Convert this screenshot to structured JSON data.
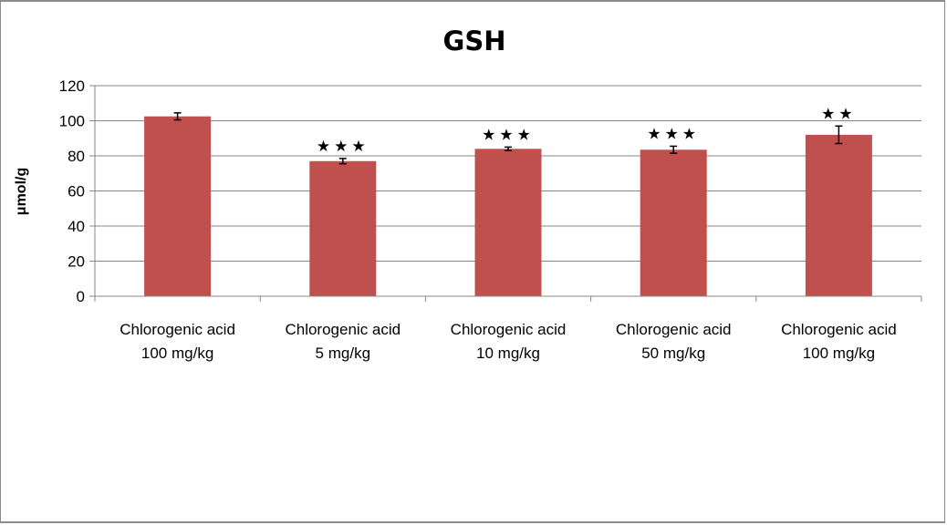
{
  "chart_data": {
    "type": "bar",
    "title": "GSH",
    "xlabel": "",
    "ylabel": "μmol/g",
    "ylim": [
      0,
      120
    ],
    "yticks": [
      0,
      20,
      40,
      60,
      80,
      100,
      120
    ],
    "grid": true,
    "categories": [
      [
        "Chlorogenic acid",
        "100 mg/kg"
      ],
      [
        "Chlorogenic acid",
        "5 mg/kg"
      ],
      [
        "Chlorogenic acid",
        "10 mg/kg"
      ],
      [
        "Chlorogenic acid",
        "50 mg/kg"
      ],
      [
        "Chlorogenic acid",
        "100 mg/kg"
      ]
    ],
    "values": [
      102.5,
      77,
      84,
      83.5,
      92
    ],
    "errors": [
      2,
      1.5,
      1,
      2,
      5
    ],
    "significance": [
      "",
      "★★★",
      "★★★",
      "★★★",
      "★★"
    ],
    "colors": {
      "bar": "#c0504d",
      "grid": "#878787",
      "axis": "#878787"
    }
  }
}
